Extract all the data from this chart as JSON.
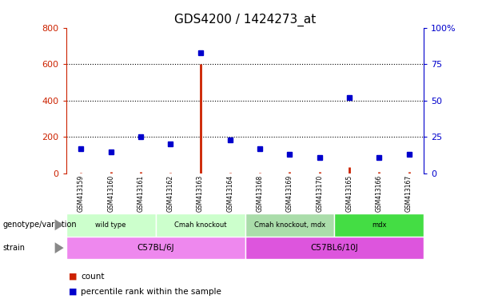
{
  "title": "GDS4200 / 1424273_at",
  "samples": [
    "GSM413159",
    "GSM413160",
    "GSM413161",
    "GSM413162",
    "GSM413163",
    "GSM413164",
    "GSM413168",
    "GSM413169",
    "GSM413170",
    "GSM413165",
    "GSM413166",
    "GSM413167"
  ],
  "count_values": [
    5,
    8,
    8,
    5,
    600,
    3,
    5,
    8,
    8,
    35,
    8,
    10
  ],
  "percentile_values": [
    17,
    15,
    25,
    20,
    83,
    23,
    17,
    13,
    11,
    52,
    11,
    13
  ],
  "genotype_groups": [
    {
      "label": "wild type",
      "start": 0,
      "end": 3,
      "color": "#ccffcc"
    },
    {
      "label": "Cmah knockout",
      "start": 3,
      "end": 6,
      "color": "#ccffcc"
    },
    {
      "label": "Cmah knockout, mdx",
      "start": 6,
      "end": 9,
      "color": "#aaddaa"
    },
    {
      "label": "mdx",
      "start": 9,
      "end": 12,
      "color": "#44dd44"
    }
  ],
  "strain_groups": [
    {
      "label": "C57BL/6J",
      "start": 0,
      "end": 6,
      "color": "#ee88ee"
    },
    {
      "label": "C57BL6/10J",
      "start": 6,
      "end": 12,
      "color": "#dd55dd"
    }
  ],
  "ylim_left": [
    0,
    800
  ],
  "ylim_right": [
    0,
    100
  ],
  "yticks_left": [
    0,
    200,
    400,
    600,
    800
  ],
  "yticks_right": [
    0,
    25,
    50,
    75,
    100
  ],
  "count_color": "#cc2200",
  "percentile_color": "#0000cc",
  "bg_color": "#ffffff",
  "plot_bg": "#ffffff",
  "sample_bg": "#cccccc",
  "legend_count_label": "count",
  "legend_percentile_label": "percentile rank within the sample",
  "geno_label": "genotype/variation",
  "strain_label": "strain"
}
